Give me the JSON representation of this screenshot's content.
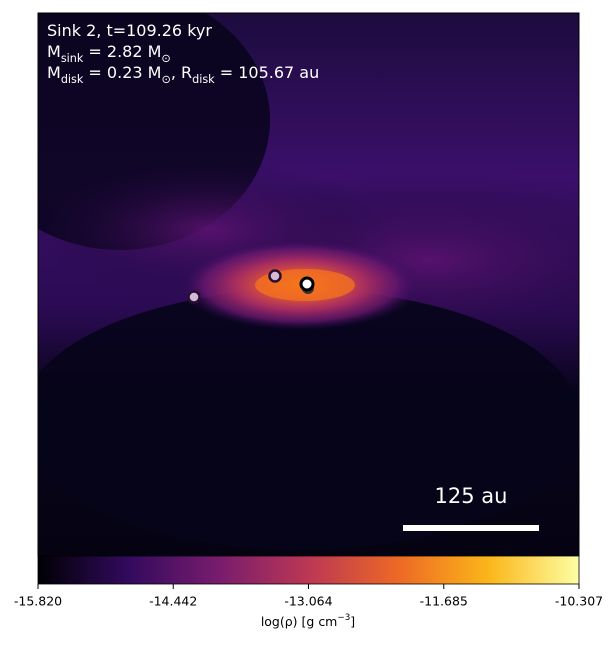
{
  "chart_data": {
    "type": "heatmap",
    "annotations": [
      [
        {
          "text": "Sink 2, t=109.26 kyr"
        }
      ],
      [
        {
          "text": "M"
        },
        {
          "sub": "sink"
        },
        {
          "text": " = 2.82 M"
        },
        {
          "sub": "⊙"
        }
      ],
      [
        {
          "text": "M"
        },
        {
          "sub": "disk"
        },
        {
          "text": " = 0.23 M"
        },
        {
          "sub": "⊙"
        },
        {
          "text": ", R"
        },
        {
          "sub": "disk"
        },
        {
          "text": " = 105.67 au"
        }
      ]
    ],
    "scale_bar": "125 au",
    "colorbar": {
      "label": [
        {
          "text": "log(ρ) [g cm"
        },
        {
          "sup": "−3"
        },
        {
          "text": "]"
        }
      ],
      "lim": [
        -15.82,
        -10.307
      ],
      "ticks": [
        {
          "value": -15.82,
          "label": "-15.820"
        },
        {
          "value": -14.442,
          "label": "-14.442"
        },
        {
          "value": -13.064,
          "label": "-13.064"
        },
        {
          "value": -11.685,
          "label": "-11.685"
        },
        {
          "value": -10.307,
          "label": "-10.307"
        }
      ],
      "colormap": [
        "#000004",
        "#320a5e",
        "#781c6d",
        "#bc3754",
        "#ed6925",
        "#fbb61a",
        "#fcffa4"
      ]
    }
  }
}
